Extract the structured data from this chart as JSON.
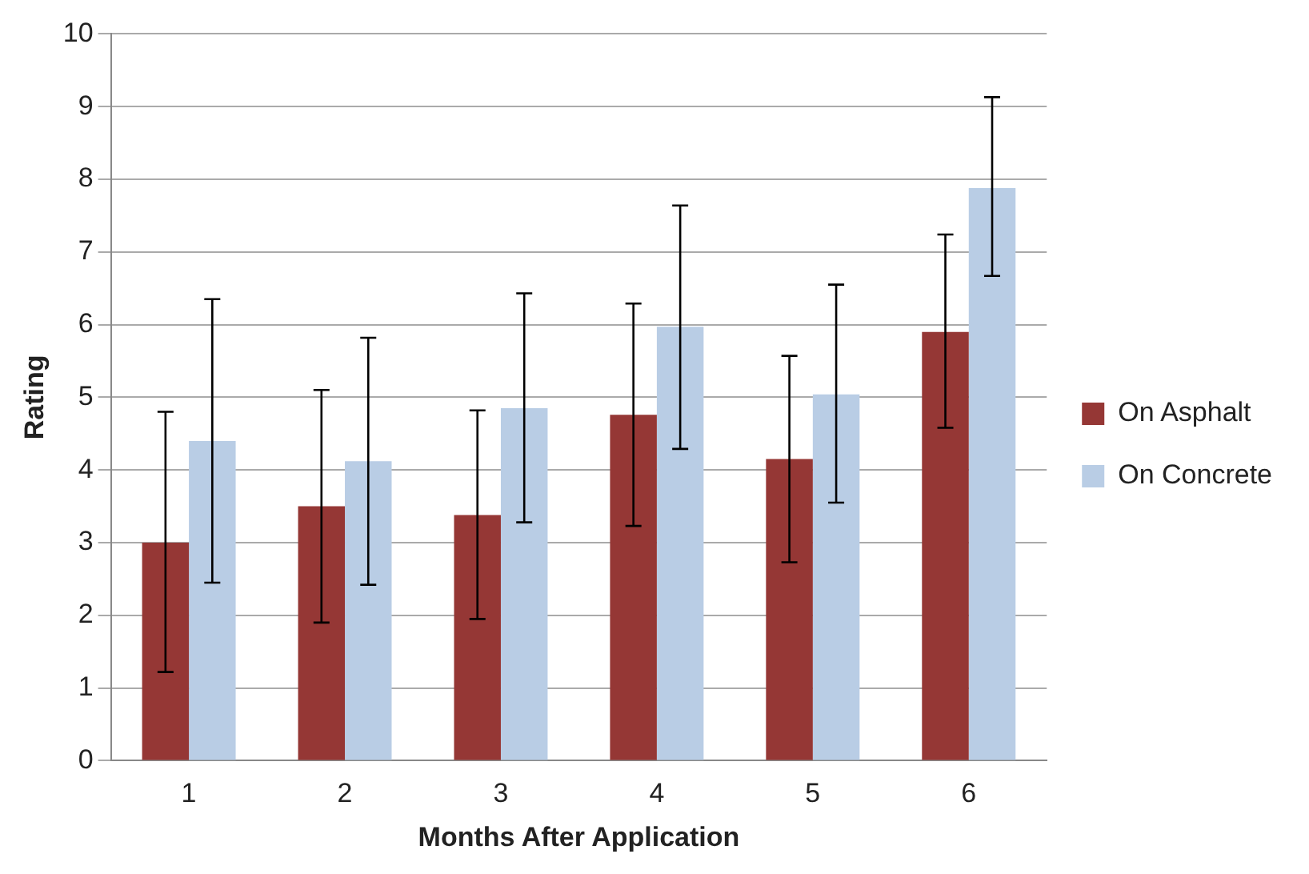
{
  "chart_data": {
    "type": "bar",
    "xlabel": "Months After Application",
    "ylabel": "Rating",
    "categories": [
      "1",
      "2",
      "3",
      "4",
      "5",
      "6"
    ],
    "series": [
      {
        "name": "On Asphalt",
        "color": "#953735",
        "values": [
          3.0,
          3.5,
          3.38,
          4.76,
          4.15,
          5.9
        ],
        "errors": [
          [
            1.22,
            4.8
          ],
          [
            1.9,
            5.1
          ],
          [
            1.95,
            4.82
          ],
          [
            3.23,
            6.29
          ],
          [
            2.73,
            5.57
          ],
          [
            4.58,
            7.24
          ]
        ]
      },
      {
        "name": "On Concrete",
        "color": "#b9cde5",
        "values": [
          4.4,
          4.12,
          4.85,
          5.97,
          5.04,
          7.88
        ],
        "errors": [
          [
            2.45,
            6.35
          ],
          [
            2.42,
            5.82
          ],
          [
            3.28,
            6.43
          ],
          [
            4.29,
            7.64
          ],
          [
            3.55,
            6.55
          ],
          [
            6.67,
            9.13
          ]
        ]
      }
    ],
    "ylim": [
      0,
      10
    ],
    "yticks": [
      0,
      1,
      2,
      3,
      4,
      5,
      6,
      7,
      8,
      9,
      10
    ],
    "grid": "y",
    "legend": "right"
  }
}
